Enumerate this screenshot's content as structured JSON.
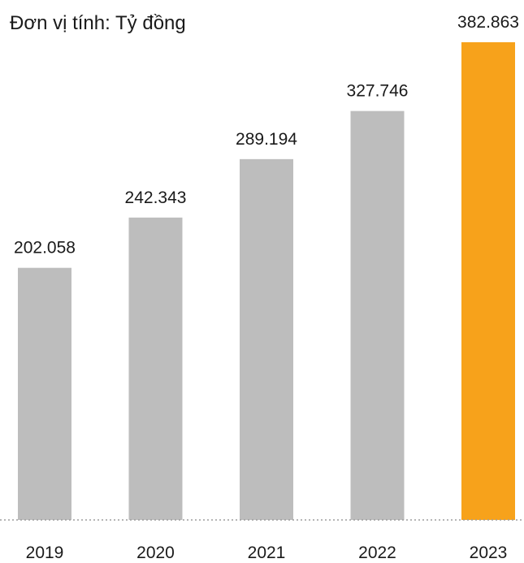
{
  "chart_data": {
    "type": "bar",
    "unit_label": "Đơn vị tính: Tỷ đồng",
    "categories": [
      "2019",
      "2020",
      "2021",
      "2022",
      "2023"
    ],
    "values": [
      202058,
      242343,
      289194,
      327746,
      382863
    ],
    "value_labels": [
      "202.058",
      "242.343",
      "289.194",
      "327.746",
      "382.863"
    ],
    "ylim": [
      0,
      400000
    ],
    "grid": false,
    "colors": {
      "default_bar": "#bdbdbd",
      "highlight_bar": "#f7a21b",
      "baseline": "#9e9e9e",
      "text": "#1a1a1a"
    },
    "highlight_index": 4
  }
}
